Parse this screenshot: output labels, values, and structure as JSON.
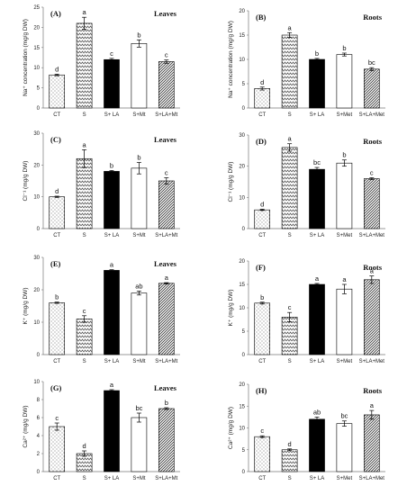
{
  "chart_data": [
    {
      "type": "bar",
      "panel": "(A)",
      "title": "Leaves",
      "ylabel": "Na⁺ concentration (mg/g DW)",
      "ylim": [
        0,
        25
      ],
      "yticks": [
        0,
        5,
        10,
        15,
        20,
        25
      ],
      "categories": [
        "CT",
        "S",
        "S+ LA",
        "S+Mt",
        "S+LA+Mt"
      ],
      "values": [
        8.2,
        21,
        12,
        16,
        11.5
      ],
      "errors": [
        0.2,
        1.5,
        0.3,
        0.9,
        0.4
      ],
      "letters": [
        "d",
        "a",
        "c",
        "b",
        "c"
      ]
    },
    {
      "type": "bar",
      "panel": "(B)",
      "title": "Roots",
      "ylabel": "Na⁺ concentration (mg/g DW)",
      "ylim": [
        0,
        20
      ],
      "yticks": [
        0,
        5,
        10,
        15,
        20
      ],
      "categories": [
        "CT",
        "S",
        "S+ LA",
        "S+Met",
        "S+LA+Met"
      ],
      "values": [
        4,
        15,
        10,
        11,
        8
      ],
      "errors": [
        0.3,
        0.5,
        0.2,
        0.3,
        0.3
      ],
      "letters": [
        "d",
        "a",
        "b",
        "b",
        "bc"
      ]
    },
    {
      "type": "bar",
      "panel": "(C)",
      "title": "Leaves",
      "ylabel": "Cl⁻¹ (mg/g DW)",
      "ylim": [
        0,
        30
      ],
      "yticks": [
        0,
        10,
        20,
        30
      ],
      "categories": [
        "CT",
        "S",
        "S+ LA",
        "S+Mt",
        "S+LA+Mt"
      ],
      "values": [
        10,
        22,
        18,
        19,
        15
      ],
      "errors": [
        0.2,
        2.8,
        0.3,
        1.8,
        1.0
      ],
      "letters": [
        "d",
        "a",
        "b",
        "b",
        "c"
      ]
    },
    {
      "type": "bar",
      "panel": "(D)",
      "title": "Roots",
      "ylabel": "Cl⁻¹ (mg/g DW)",
      "ylim": [
        0,
        30
      ],
      "yticks": [
        0,
        10,
        20,
        30
      ],
      "categories": [
        "CT",
        "S",
        "S+ LA",
        "S+Met",
        "S+LA+Met"
      ],
      "values": [
        6,
        26,
        19,
        21,
        16
      ],
      "errors": [
        0.2,
        1.2,
        0.6,
        1.0,
        0.3
      ],
      "letters": [
        "d",
        "a",
        "bc",
        "b",
        "c"
      ]
    },
    {
      "type": "bar",
      "panel": "(E)",
      "title": "Leaves",
      "ylabel": "K⁺ (mg/g DW)",
      "ylim": [
        0,
        30
      ],
      "yticks": [
        0,
        10,
        20,
        30
      ],
      "categories": [
        "CT",
        "S",
        "S+ LA",
        "S+Mt",
        "S+LA+Mt"
      ],
      "values": [
        16,
        11,
        26,
        19,
        22
      ],
      "errors": [
        0.2,
        1.0,
        0.2,
        0.6,
        0.2
      ],
      "letters": [
        "b",
        "c",
        "a",
        "ab",
        "a"
      ]
    },
    {
      "type": "bar",
      "panel": "(F)",
      "title": "Roots",
      "ylabel": "K⁺ (mg/g DW)",
      "ylim": [
        0,
        20
      ],
      "yticks": [
        0,
        5,
        10,
        15,
        20
      ],
      "categories": [
        "CT",
        "S",
        "S+ LA",
        "S+Met",
        "S+LA+Met"
      ],
      "values": [
        11,
        8,
        15,
        14,
        16
      ],
      "errors": [
        0.2,
        1.0,
        0.2,
        1.0,
        0.8
      ],
      "letters": [
        "b",
        "c",
        "a",
        "a",
        "a"
      ]
    },
    {
      "type": "bar",
      "panel": "(G)",
      "title": "Leaves",
      "ylabel": "Ca²⁺ (mg/g DW)",
      "ylim": [
        0,
        10
      ],
      "yticks": [
        0,
        2,
        4,
        6,
        8,
        10
      ],
      "categories": [
        "CT",
        "S",
        "S+ LA",
        "S+Mt",
        "S+LA+Mt"
      ],
      "values": [
        5,
        2,
        9,
        6,
        7
      ],
      "errors": [
        0.4,
        0.3,
        0.1,
        0.5,
        0.1
      ],
      "letters": [
        "c",
        "d",
        "a",
        "bc",
        "b"
      ]
    },
    {
      "type": "bar",
      "panel": "(H)",
      "title": "Roots",
      "ylabel": "Ca²⁺ (mg/g DW)",
      "ylim": [
        0,
        20
      ],
      "yticks": [
        0,
        5,
        10,
        15,
        20
      ],
      "categories": [
        "CT",
        "S",
        "S+ LA",
        "S+Met",
        "S+LA+Met"
      ],
      "values": [
        8,
        5,
        12,
        11,
        13
      ],
      "errors": [
        0.2,
        0.2,
        0.5,
        0.6,
        1.0
      ],
      "letters": [
        "c",
        "d",
        "ab",
        "bc",
        "a"
      ]
    }
  ]
}
